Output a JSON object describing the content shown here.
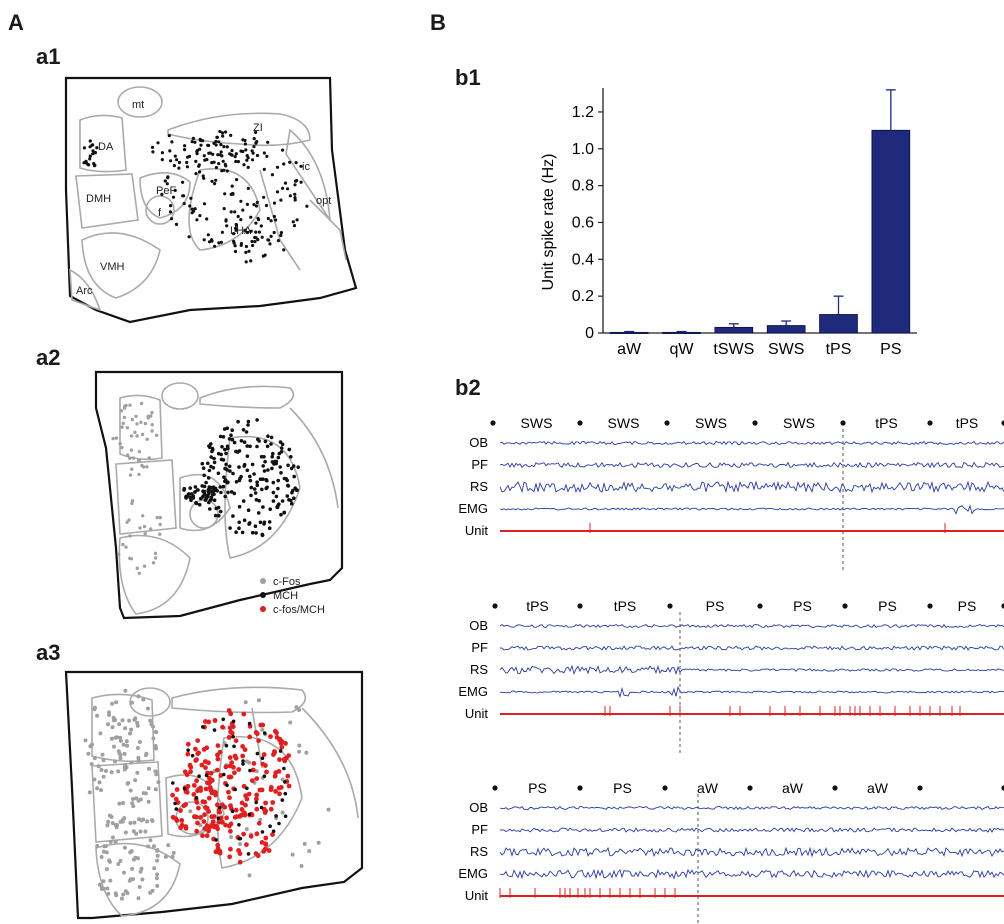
{
  "panel_A": {
    "letter": "A",
    "a1": {
      "label": "a1",
      "regions": [
        "mt",
        "ZI",
        "DA",
        "ic",
        "DMH",
        "PeF",
        "f",
        "opt",
        "LHA",
        "VMH",
        "Arc"
      ]
    },
    "a2": {
      "label": "a2",
      "legend": [
        {
          "label": "c-Fos",
          "color": "#a0a0a0"
        },
        {
          "label": "MCH",
          "color": "#111111"
        },
        {
          "label": "c-fos/MCH",
          "color": "#e02020"
        }
      ]
    },
    "a3": {
      "label": "a3"
    }
  },
  "panel_B": {
    "letter": "B",
    "b1": {
      "label": "b1"
    },
    "b2": {
      "label": "b2",
      "channels": [
        "OB",
        "PF",
        "RS",
        "EMG",
        "Unit"
      ],
      "trace_colors": {
        "eeg": "#2c3a9e",
        "unit": "#e02020"
      },
      "rows": [
        {
          "states": [
            "SWS",
            "SWS",
            "SWS",
            "SWS",
            "tPS",
            "tPS"
          ]
        },
        {
          "states": [
            "tPS",
            "tPS",
            "PS",
            "PS",
            "PS",
            "PS"
          ]
        },
        {
          "states": [
            "PS",
            "PS",
            "aW",
            "aW",
            "aW"
          ]
        }
      ]
    }
  },
  "chart_data": {
    "type": "bar",
    "categories": [
      "aW",
      "qW",
      "tSWS",
      "SWS",
      "tPS",
      "PS"
    ],
    "values": [
      0.003,
      0.003,
      0.03,
      0.04,
      0.1,
      1.1
    ],
    "errors": [
      0.005,
      0.005,
      0.02,
      0.025,
      0.1,
      0.22
    ],
    "ylabel": "Unit spike rate (Hz)",
    "yticks": [
      "0",
      "0.2",
      "0.4",
      "0.6",
      "0.8",
      "1.0",
      "1.2"
    ],
    "ylim": [
      0,
      1.33
    ],
    "bar_color": "#1f2a7c"
  }
}
